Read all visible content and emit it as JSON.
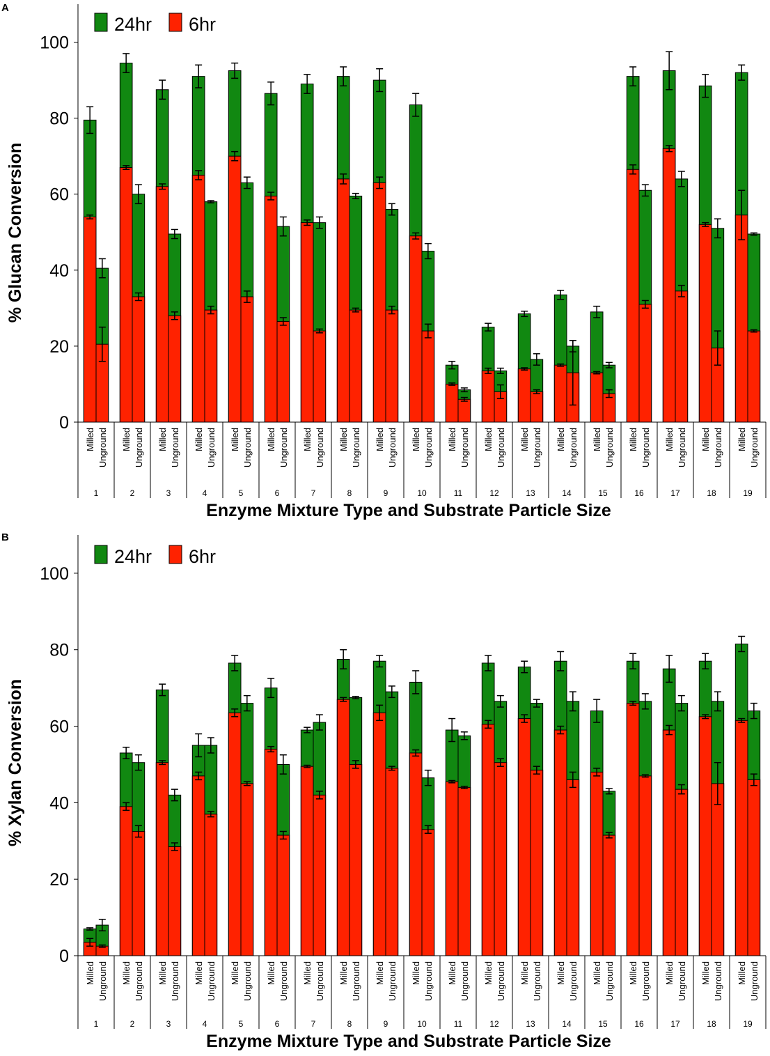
{
  "colors": {
    "h24": "#118811",
    "h6": "#ff2200",
    "axis": "#000000"
  },
  "chart_data": [
    {
      "panel": "A",
      "type": "bar",
      "stacked": true,
      "title": "",
      "ylabel": "% Glucan Conversion",
      "xlabel": "Enzyme Mixture Type and Substrate Particle Size",
      "ylim": [
        0,
        110
      ],
      "yticks": [
        0,
        20,
        40,
        60,
        80,
        100
      ],
      "legend": {
        "placement": "top-left",
        "entries": [
          "24hr",
          "6hr"
        ]
      },
      "categories": [
        "1",
        "2",
        "3",
        "4",
        "5",
        "6",
        "7",
        "8",
        "9",
        "10",
        "11",
        "12",
        "13",
        "14",
        "15",
        "16",
        "17",
        "18",
        "19"
      ],
      "subcategories": [
        "Milled",
        "Unground"
      ],
      "series": [
        {
          "name": "6hr",
          "milled": [
            54,
            67,
            62,
            65,
            70,
            59.5,
            52.5,
            64,
            63,
            49,
            10,
            13.5,
            14,
            15,
            13,
            66.5,
            72,
            52,
            54.5
          ],
          "unground": [
            20.5,
            33,
            28,
            29.5,
            33,
            26.5,
            24,
            29.5,
            29.5,
            24,
            6,
            8,
            8,
            13,
            7.5,
            31,
            34.5,
            19.5,
            24
          ],
          "err_milled": [
            0.5,
            0.5,
            0.7,
            1.2,
            1.2,
            1,
            0.7,
            1.3,
            1.5,
            0.8,
            0.3,
            0.7,
            0.3,
            0.3,
            0.3,
            1.2,
            0.8,
            0.5,
            6.5
          ],
          "err_unground": [
            4.5,
            1,
            1,
            1,
            1.5,
            1,
            0.5,
            0.5,
            1,
            1.8,
            0.5,
            1.8,
            0.5,
            8.5,
            1,
            1,
            1.5,
            4.5,
            0.3
          ]
        },
        {
          "name": "24hr",
          "milled": [
            79.5,
            94.5,
            87.5,
            91,
            92.5,
            86.5,
            89,
            91,
            90,
            83.5,
            15,
            25,
            28.5,
            33.5,
            29,
            91,
            92.5,
            88.5,
            92
          ],
          "unground": [
            40.5,
            60,
            49.5,
            58,
            63,
            51.5,
            52.5,
            59.5,
            56,
            45,
            8.5,
            13.5,
            16.5,
            20,
            15,
            61,
            64,
            51,
            49.5
          ],
          "err_milled": [
            3.5,
            2.5,
            2.5,
            3,
            2,
            3,
            2.5,
            2.5,
            3,
            3,
            1,
            1,
            0.7,
            1.2,
            1.5,
            2.5,
            5,
            3,
            2
          ],
          "err_unground": [
            2.5,
            2.5,
            1.2,
            0.3,
            1.5,
            2.5,
            1.5,
            0.7,
            1.5,
            2,
            0.5,
            0.7,
            1.5,
            1.5,
            0.7,
            1.5,
            2,
            2.5,
            0.3
          ]
        }
      ]
    },
    {
      "panel": "B",
      "type": "bar",
      "stacked": true,
      "title": "",
      "ylabel": "% Xylan Conversion",
      "xlabel": "Enzyme Mixture Type and Substrate Particle Size",
      "ylim": [
        0,
        110
      ],
      "yticks": [
        0,
        20,
        40,
        60,
        80,
        100
      ],
      "legend": {
        "placement": "top-left",
        "entries": [
          "24hr",
          "6hr"
        ]
      },
      "categories": [
        "1",
        "2",
        "3",
        "4",
        "5",
        "6",
        "7",
        "8",
        "9",
        "10",
        "11",
        "12",
        "13",
        "14",
        "15",
        "16",
        "17",
        "18",
        "19"
      ],
      "subcategories": [
        "Milled",
        "Unground"
      ],
      "series": [
        {
          "name": "6hr",
          "milled": [
            3.5,
            39,
            50.5,
            47,
            63.5,
            54,
            49.5,
            67,
            63.5,
            53,
            45.5,
            60.5,
            62,
            59,
            48,
            66,
            59,
            62.5,
            61.5
          ],
          "unground": [
            2.5,
            32.5,
            28.5,
            37,
            45,
            31.5,
            42,
            50,
            49,
            33,
            44,
            50.5,
            48.5,
            46,
            31.5,
            47,
            43.5,
            45,
            46
          ],
          "err_milled": [
            1,
            1,
            0.5,
            1,
            1,
            0.7,
            0.3,
            0.5,
            2,
            0.8,
            0.3,
            1,
            1,
            1,
            1,
            0.5,
            1.2,
            0.5,
            0.5
          ],
          "err_unground": [
            0.3,
            1.5,
            1,
            0.7,
            0.5,
            1,
            1,
            1,
            0.5,
            1,
            0.3,
            1,
            1,
            2,
            0.7,
            0.3,
            1.2,
            5.5,
            1.5
          ]
        },
        {
          "name": "24hr",
          "milled": [
            7,
            53,
            69.5,
            55,
            76.5,
            70,
            59,
            77.5,
            77,
            71.5,
            59,
            76.5,
            75.5,
            77,
            64,
            77,
            75,
            77,
            81.5
          ],
          "unground": [
            8,
            50.5,
            42,
            55,
            66,
            50,
            61,
            67.5,
            69,
            46.5,
            57.5,
            66.5,
            66,
            66.5,
            43,
            66.5,
            66,
            66.5,
            64
          ],
          "err_milled": [
            0.3,
            1.5,
            1.5,
            3,
            2,
            2.5,
            0.7,
            2.5,
            1.5,
            3,
            3,
            2,
            1.5,
            2.5,
            3,
            2,
            3.5,
            2,
            2
          ],
          "err_unground": [
            1.5,
            2,
            1.5,
            2,
            2,
            2.5,
            2,
            0.3,
            1.5,
            2,
            1,
            1.5,
            1,
            2.5,
            0.7,
            2,
            2,
            2.5,
            2
          ]
        }
      ]
    }
  ]
}
